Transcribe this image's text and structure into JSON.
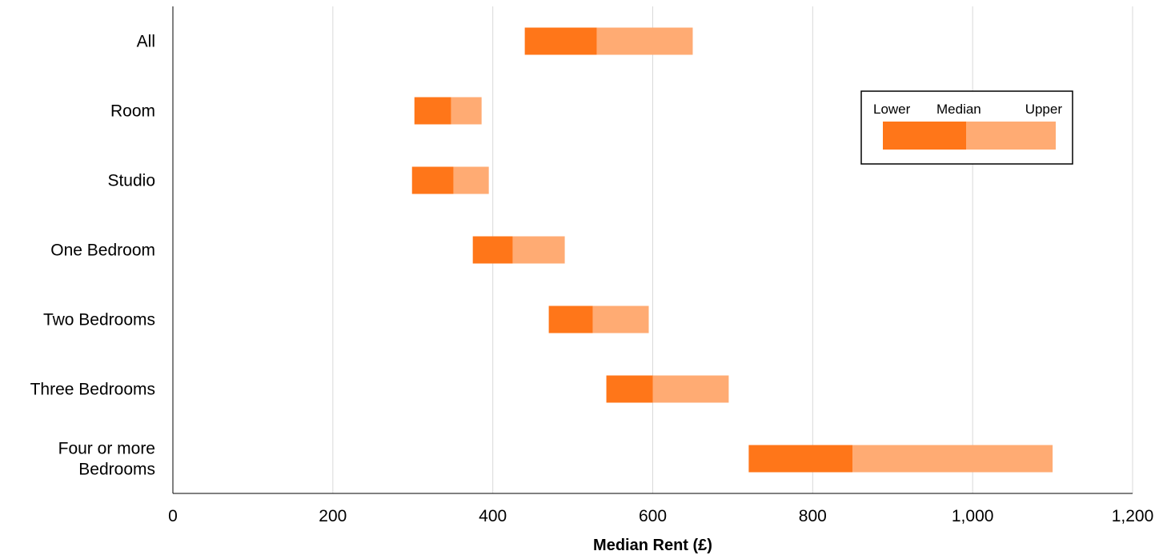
{
  "chart_data": {
    "type": "bar",
    "subtype": "floating-range",
    "categories": [
      "All",
      "Room",
      "Studio",
      "One Bedroom",
      "Two Bedrooms",
      "Three Bedrooms",
      "Four or more Bedrooms"
    ],
    "category_lines": [
      [
        "All"
      ],
      [
        "Room"
      ],
      [
        "Studio"
      ],
      [
        "One Bedroom"
      ],
      [
        "Two Bedrooms"
      ],
      [
        "Three Bedrooms"
      ],
      [
        "Four or more",
        "Bedrooms"
      ]
    ],
    "lower": [
      440,
      302,
      299,
      375,
      470,
      542,
      720
    ],
    "median": [
      530,
      348,
      351,
      425,
      525,
      600,
      850
    ],
    "upper": [
      650,
      386,
      395,
      490,
      595,
      695,
      1100
    ],
    "xlabel": "Median Rent (£)",
    "xlim": [
      0,
      1200
    ],
    "xticks": [
      0,
      200,
      400,
      600,
      800,
      1000,
      1200
    ],
    "xtick_labels": [
      "0",
      "200",
      "400",
      "600",
      "800",
      "1,000",
      "1,200"
    ],
    "grid": "vertical",
    "legend": {
      "position": "top-right",
      "labels": [
        "Lower",
        "Median",
        "Upper"
      ]
    },
    "colors": {
      "lower_to_median": "#ff7619",
      "median_to_upper": "#ffab73",
      "grid": "#d9d9d9",
      "axis": "#000000"
    }
  }
}
